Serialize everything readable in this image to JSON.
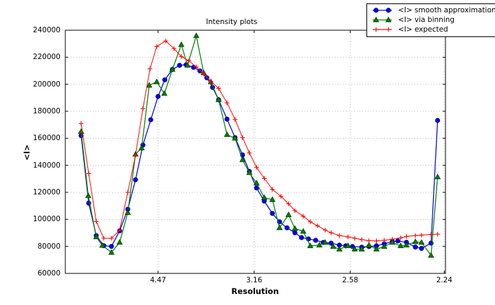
{
  "chart_data": {
    "type": "line",
    "title": "Intensity plots",
    "xlabel": "Resolution",
    "ylabel": "<I>",
    "grid": "dotted",
    "grid_color": "#b8b8b8",
    "axis_color": "#000000",
    "background_color": "#ffffff",
    "legend_position": "top-right",
    "x_axis": {
      "label": "Resolution",
      "scale": "inverse_d_squared",
      "range_d": [
        24.2,
        2.2366
      ],
      "ticks": [
        {
          "d": 4.47,
          "label": "4.47"
        },
        {
          "d": 3.16,
          "label": "3.16"
        },
        {
          "d": 2.58,
          "label": "2.58"
        },
        {
          "d": 2.24,
          "label": "2.24"
        }
      ]
    },
    "y_axis": {
      "label": "<I>",
      "range": [
        60000,
        240000
      ],
      "ticks": [
        {
          "value": 60000,
          "label": "60000"
        },
        {
          "value": 80000,
          "label": "80000"
        },
        {
          "value": 100000,
          "label": "100000"
        },
        {
          "value": 120000,
          "label": "120000"
        },
        {
          "value": 140000,
          "label": "140000"
        },
        {
          "value": 160000,
          "label": "160000"
        },
        {
          "value": 180000,
          "label": "180000"
        },
        {
          "value": 200000,
          "label": "200000"
        },
        {
          "value": 220000,
          "label": "220000"
        },
        {
          "value": 240000,
          "label": "240000"
        }
      ]
    },
    "series": [
      {
        "name": "<I> smooth approximation",
        "marker": "circle",
        "color": "#0000ee",
        "edge_color": "#00007a",
        "d": [
          10.02,
          8.48,
          7.49,
          6.78,
          6.23,
          5.77,
          5.4,
          5.11,
          4.87,
          4.65,
          4.47,
          4.32,
          4.17,
          4.04,
          3.93,
          3.82,
          3.73,
          3.64,
          3.57,
          3.5,
          3.41,
          3.33,
          3.26,
          3.2,
          3.14,
          3.08,
          3.02,
          2.97,
          2.92,
          2.87,
          2.83,
          2.79,
          2.75,
          2.71,
          2.67,
          2.63,
          2.6,
          2.57,
          2.53,
          2.5,
          2.47,
          2.44,
          2.41,
          2.39,
          2.36,
          2.33,
          2.31,
          2.28,
          2.26
        ],
        "values": [
          162000,
          112000,
          88000,
          80500,
          80000,
          91500,
          107500,
          129300,
          155000,
          173700,
          191000,
          203300,
          210900,
          214000,
          214500,
          212500,
          209900,
          204800,
          197700,
          188500,
          174200,
          160500,
          147700,
          135500,
          123200,
          113500,
          104400,
          98200,
          93700,
          90100,
          86500,
          85500,
          84500,
          82900,
          82400,
          80900,
          80400,
          79900,
          79400,
          79900,
          80400,
          81900,
          83500,
          84000,
          83000,
          79500,
          78500,
          82400,
          173200
        ]
      },
      {
        "name": "<I> via binning",
        "marker": "triangle-up",
        "color": "#008000",
        "edge_color": "#003c00",
        "d": [
          10.02,
          8.55,
          7.49,
          6.9,
          6.23,
          5.77,
          5.4,
          5.11,
          4.91,
          4.69,
          4.5,
          4.33,
          4.17,
          4.01,
          3.91,
          3.78,
          3.68,
          3.59,
          3.5,
          3.41,
          3.33,
          3.26,
          3.2,
          3.14,
          3.08,
          3.02,
          2.97,
          2.91,
          2.87,
          2.82,
          2.78,
          2.73,
          2.7,
          2.66,
          2.63,
          2.59,
          2.56,
          2.53,
          2.5,
          2.47,
          2.44,
          2.41,
          2.38,
          2.36,
          2.33,
          2.31,
          2.28,
          2.26
        ],
        "values": [
          165000,
          117500,
          87000,
          80700,
          75500,
          83000,
          105000,
          148200,
          152800,
          199200,
          201800,
          193100,
          210900,
          229300,
          214000,
          235900,
          208400,
          201800,
          188500,
          162700,
          160000,
          144100,
          134500,
          126800,
          116100,
          114600,
          93700,
          103400,
          93200,
          91100,
          80400,
          80900,
          82900,
          79900,
          77900,
          80400,
          77900,
          77900,
          80900,
          77900,
          79900,
          82900,
          80400,
          80900,
          83400,
          82900,
          73300,
          131400
        ]
      },
      {
        "name": "<I> expected",
        "marker": "plus",
        "color": "#ff0000",
        "edge_color": "#ff0000",
        "d": [
          10.02,
          8.48,
          7.49,
          6.78,
          6.23,
          5.77,
          5.4,
          5.11,
          4.87,
          4.67,
          4.5,
          4.3,
          4.14,
          4.01,
          3.89,
          3.78,
          3.68,
          3.59,
          3.5,
          3.41,
          3.33,
          3.26,
          3.2,
          3.14,
          3.08,
          3.02,
          2.96,
          2.91,
          2.87,
          2.82,
          2.78,
          2.74,
          2.7,
          2.67,
          2.63,
          2.59,
          2.56,
          2.53,
          2.5,
          2.47,
          2.44,
          2.41,
          2.38,
          2.36,
          2.33,
          2.31,
          2.28,
          2.26
        ],
        "values": [
          171000,
          134000,
          98500,
          86000,
          86000,
          92000,
          120000,
          147500,
          182000,
          211500,
          228000,
          232000,
          226400,
          220500,
          217400,
          212800,
          207700,
          202100,
          197000,
          186200,
          174000,
          160500,
          149200,
          138500,
          130400,
          122200,
          117000,
          111500,
          106400,
          102300,
          98200,
          95200,
          92100,
          90100,
          88000,
          87000,
          86000,
          85000,
          84200,
          84000,
          84500,
          85300,
          86300,
          87300,
          88000,
          88300,
          88800,
          89000
        ]
      }
    ]
  }
}
